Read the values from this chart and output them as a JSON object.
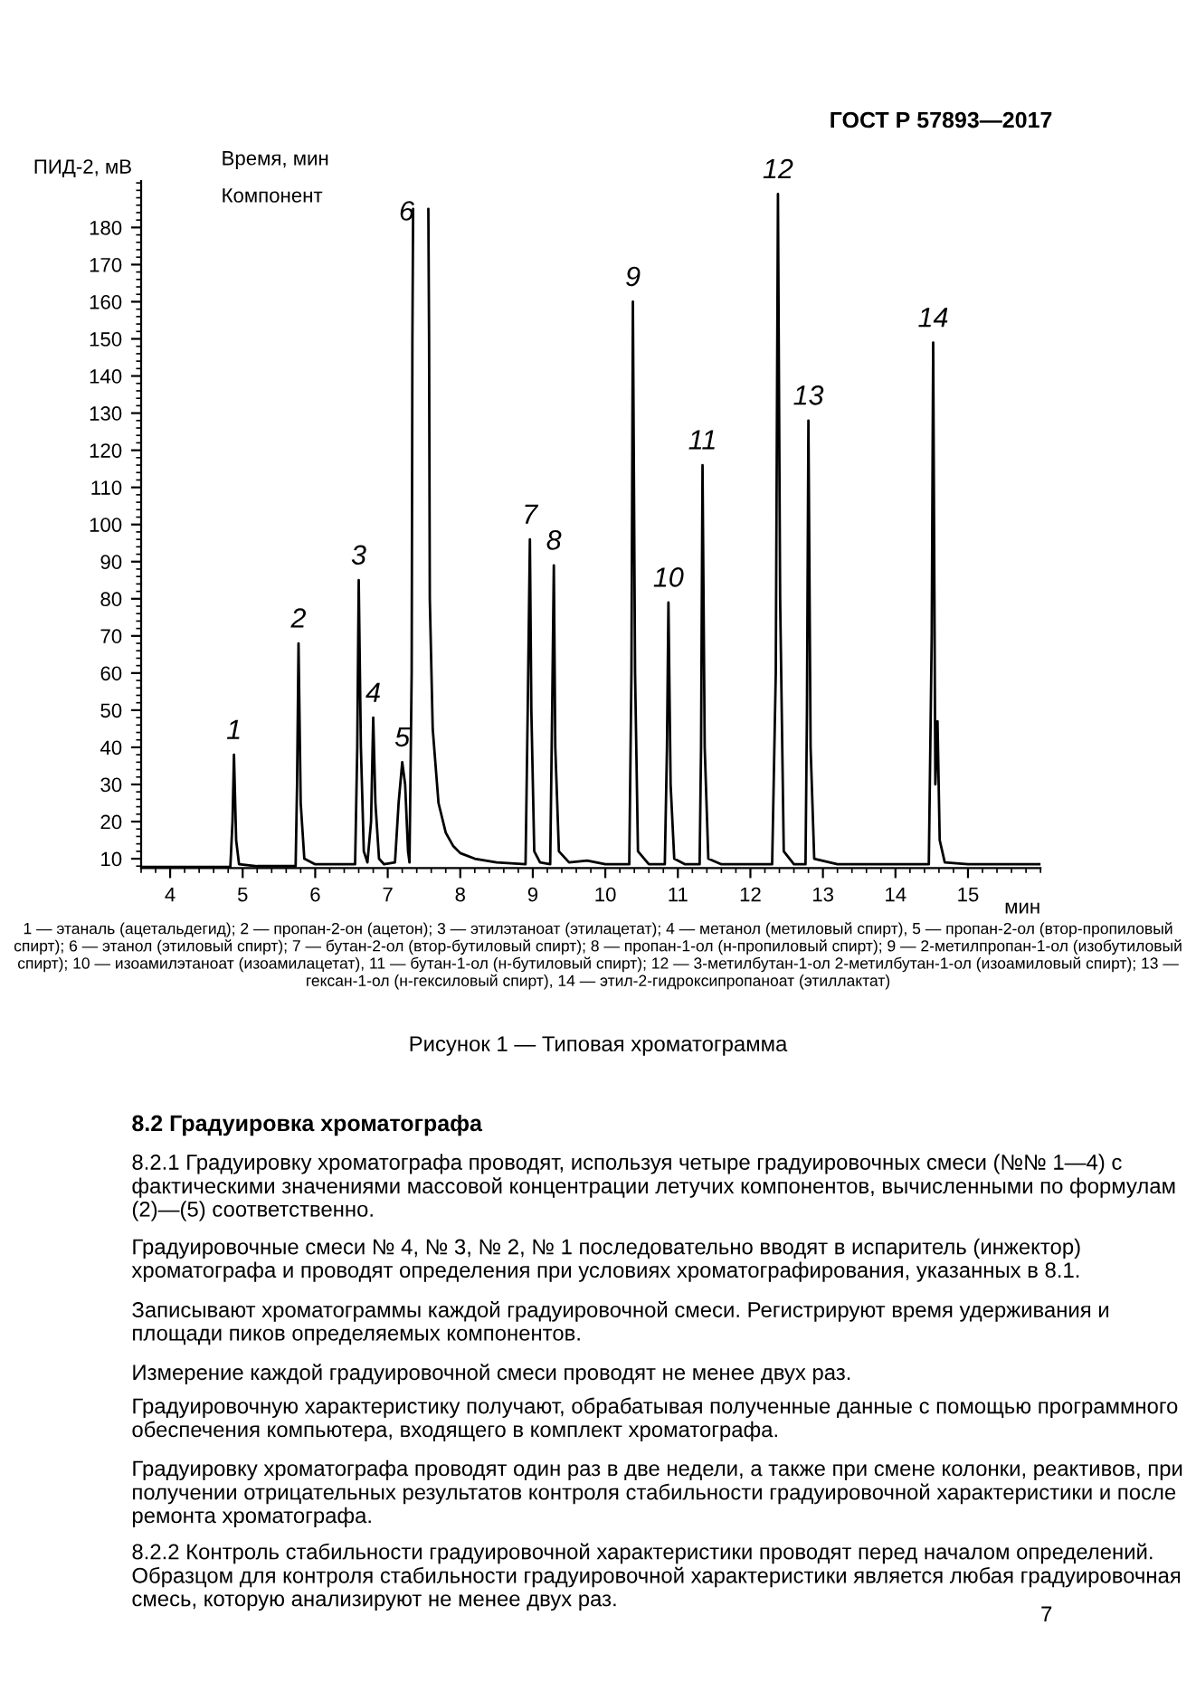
{
  "chart_data": {
    "type": "line",
    "title": "Рисунок 1 — Типовая хроматограмма",
    "xlabel": "мин",
    "ylabel": "ПИД-2, мВ",
    "series": [
      {
        "color": "#000000",
        "x": [
          3.6,
          4.83,
          4.86,
          4.88,
          4.91,
          4.95,
          5.2,
          5.73,
          5.75,
          5.77,
          5.8,
          5.85,
          6.0,
          6.55,
          6.58,
          6.6,
          6.63,
          6.67,
          6.72,
          6.77,
          6.8,
          6.83,
          6.88,
          6.95,
          7.1,
          7.15,
          7.2,
          7.24,
          7.28,
          7.3,
          7.33,
          7.34,
          7.35,
          7.36,
          7.55,
          7.56,
          7.57,
          7.58,
          7.62,
          7.7,
          7.8,
          7.9,
          8.0,
          8.2,
          8.5,
          8.9,
          8.93,
          8.96,
          8.98,
          9.02,
          9.1,
          9.24,
          9.27,
          9.29,
          9.31,
          9.36,
          9.5,
          9.75,
          10.0,
          10.33,
          10.36,
          10.38,
          10.41,
          10.45,
          10.6,
          10.82,
          10.85,
          10.87,
          10.9,
          10.95,
          11.1,
          11.3,
          11.32,
          11.34,
          11.37,
          11.42,
          11.6,
          12.3,
          12.35,
          12.38,
          12.41,
          12.46,
          12.6,
          12.76,
          12.78,
          12.8,
          12.83,
          12.88,
          13.2,
          14.46,
          14.5,
          14.52,
          14.55,
          14.58,
          14.61,
          14.68,
          15.0,
          16.0
        ],
        "values": [
          7.8,
          7.8,
          20,
          38,
          15,
          8.5,
          8,
          8,
          30,
          68,
          25,
          10,
          8.5,
          8.5,
          40,
          85,
          40,
          12,
          9,
          20,
          48,
          25,
          10,
          8.5,
          9,
          25,
          36,
          30,
          12,
          9,
          60,
          150,
          185,
          null,
          null,
          185,
          150,
          80,
          45,
          25,
          17,
          13.5,
          11.5,
          10,
          9,
          8.5,
          50,
          96,
          50,
          12,
          9,
          8.5,
          55,
          89,
          40,
          12,
          9,
          9.5,
          8.5,
          8.5,
          60,
          160,
          60,
          12,
          8.5,
          8.5,
          40,
          79,
          30,
          10,
          8.5,
          8.5,
          40,
          116,
          40,
          10,
          8.5,
          8.5,
          60,
          189,
          80,
          12,
          8.5,
          8.5,
          50,
          128,
          40,
          10,
          8.5,
          8.5,
          70,
          149,
          30,
          47,
          15,
          9,
          8.5,
          8.5
        ]
      }
    ],
    "xlim": [
      3.6,
      16.0
    ],
    "ylim": [
      7.5,
      192.5
    ],
    "xticks": [
      4,
      5,
      6,
      7,
      8,
      9,
      10,
      11,
      12,
      13,
      14,
      15
    ],
    "yticks": [
      10,
      20,
      30,
      40,
      50,
      60,
      70,
      80,
      90,
      100,
      110,
      120,
      130,
      140,
      150,
      160,
      170,
      180
    ],
    "grid": false,
    "legend": false,
    "marker": "none",
    "line_style": "solid",
    "annotations": [
      {
        "text": "1",
        "x": 4.88,
        "y": 38
      },
      {
        "text": "2",
        "x": 5.77,
        "y": 68
      },
      {
        "text": "3",
        "x": 6.6,
        "y": 85
      },
      {
        "text": "4",
        "x": 6.8,
        "y": 48
      },
      {
        "text": "5",
        "x": 7.2,
        "y": 36
      },
      "6",
      {
        "text": "7",
        "x": 8.96,
        "y": 96
      },
      {
        "text": "8",
        "x": 9.29,
        "y": 89
      },
      {
        "text": "9",
        "x": 10.38,
        "y": 160
      },
      {
        "text": "10",
        "x": 10.87,
        "y": 79
      },
      {
        "text": "11",
        "x": 11.34,
        "y": 116
      },
      {
        "text": "12",
        "x": 12.38,
        "y": 189
      },
      {
        "text": "13",
        "x": 12.8,
        "y": 128
      },
      {
        "text": "14",
        "x": 14.52,
        "y": 149
      },
      "Время, мин",
      "Компонент",
      "ГОСТ Р 57893—2017",
      "1 — этаналь (ацетальдегид); 2 — пропан-2-он (ацетон); 3 — этилэтаноат (этилацетат); 4 — метанол (метиловый спирт), 5 — пропан-2-ол (втор-пропиловый спирт); 6 — этанол (этиловый спирт); 7 — бутан-2-ол (втор-бутиловый спирт); 8 — пропан-1-ол (н-пропиловый спирт); 9 — 2-метилпропан-1-ол (изобутиловый спирт); 10 — изоамилэтаноат (изоамилацетат), 11 — бутан-1-ол (н-бутиловый спирт); 12 — 3-метилбутан-1-ол 2-метилбутан-1-ол (изоамиловый спирт); 13 — гексан-1-ол (н-гексиловый спирт), 14 — этил-2-гидроксипропаноат (этиллактат)",
      "8.2 Градуировка хроматографа",
      "8.2.1 Градуировку хроматографа проводят, используя четыре градуировочных смеси (№№ 1—4) с фактическими значениями массовой концентрации летучих компонентов, вычисленными по формулам (2)—(5) соответственно.",
      "Градуировочные смеси № 4, № 3, № 2, № 1 последовательно вводят в испаритель (инжектор) хроматографа и проводят определения при условиях хроматографирования, указанных в 8.1.",
      "Записывают хроматограммы каждой градуировочной смеси. Регистрируют время удерживания и площади пиков определяемых компонентов.",
      "Измерение каждой градуировочной смеси проводят не менее двух раз.",
      "Градуировочную характеристику получают, обрабатывая полученные данные с помощью программного обеспечения компьютера, входящего в комплект хроматографа.",
      "Градуировку хроматографа проводят один раз в две недели, а также при смене колонки, реактивов, при получении отрицательных результатов контроля стабильности градуировочной характеристики и после ремонта хроматографа.",
      "8.2.2 Контроль стабильности градуировочной характеристики проводят перед началом определений. Образцом для контроля стабильности градуировочной характеристики является любая градуировочная смесь, которую анализируют не менее двух раз.",
      "7"
    ]
  }
}
